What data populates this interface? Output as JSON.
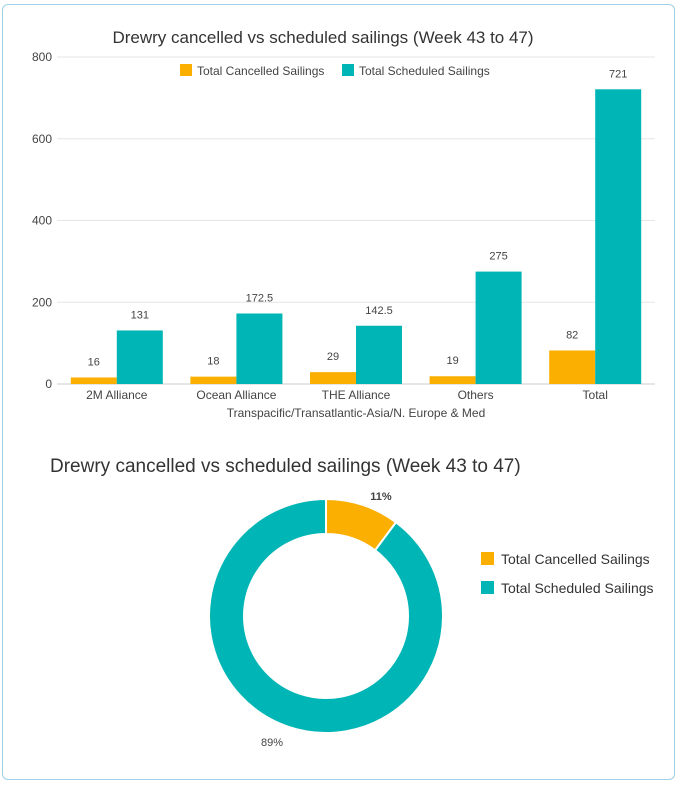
{
  "colors": {
    "cancelled": "#FBAF00",
    "scheduled": "#00B5B5"
  },
  "chart_data": [
    {
      "type": "bar",
      "title": "Drewry cancelled vs scheduled sailings (Week 43 to 47)",
      "xlabel": "Transpacific/Transatlantic-Asia/N. Europe & Med",
      "ylabel": "",
      "categories": [
        "2M Alliance",
        "Ocean Alliance",
        "THE Alliance",
        "Others",
        "Total"
      ],
      "series": [
        {
          "name": "Total Cancelled Sailings",
          "values": [
            16,
            18,
            29,
            19,
            82
          ],
          "labels": [
            "16",
            "18",
            "29",
            "19",
            "82"
          ]
        },
        {
          "name": "Total Scheduled Sailings",
          "values": [
            131,
            172.5,
            142.5,
            275,
            721
          ],
          "labels": [
            "131",
            "172.5",
            "142.5",
            "275",
            "721"
          ]
        }
      ],
      "ylim": [
        0,
        800
      ],
      "yticks": [
        0,
        200,
        400,
        600,
        800
      ],
      "grid": true,
      "legend": "top"
    },
    {
      "type": "pie",
      "title": "Drewry cancelled vs scheduled sailings (Week 43 to 47)",
      "slices": [
        {
          "name": "Total Cancelled Sailings",
          "value": 82,
          "label": "11%"
        },
        {
          "name": "Total Scheduled Sailings",
          "value": 721,
          "label": "89%"
        }
      ],
      "donut": true,
      "legend": "right"
    }
  ]
}
